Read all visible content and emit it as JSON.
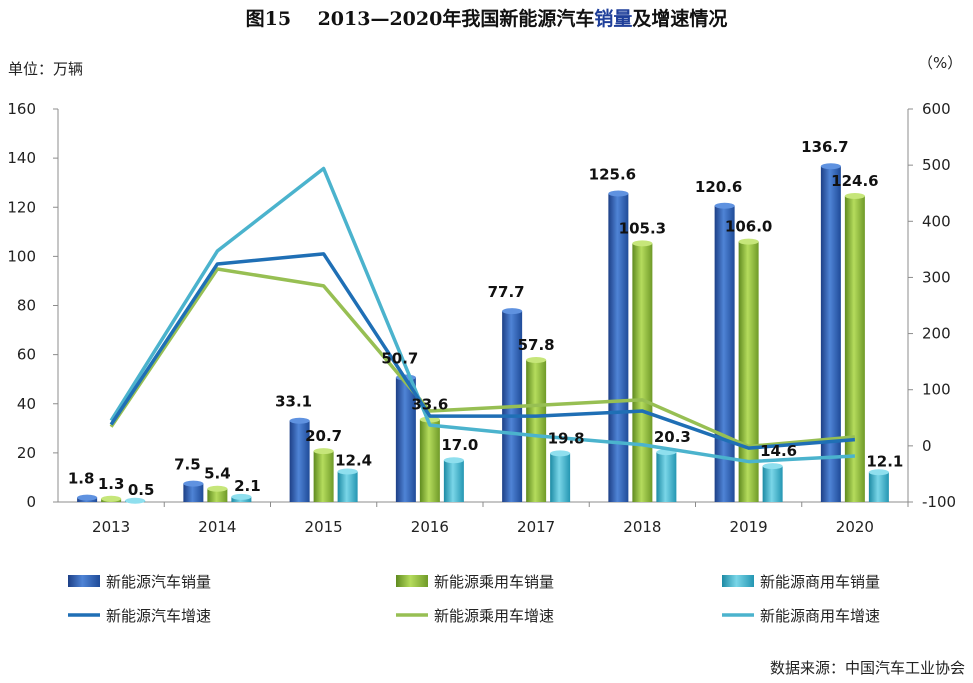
{
  "title": {
    "prefix": "图15",
    "main": "2013—2020年我国新能源汽车",
    "highlight": "销量",
    "suffix": "及增速情况"
  },
  "unit_left": "单位：万辆",
  "unit_right": "（%）",
  "source": "数据来源：中国汽车工业协会",
  "colors": {
    "total_bar": "#2e5fb0",
    "passenger_bar": "#8fb83c",
    "commercial_bar": "#3fb2c9",
    "total_line": "#1f6fb5",
    "passenger_line": "#97bf53",
    "commercial_line": "#4bb3cd",
    "axis": "#8c8c8c"
  },
  "chart_data": {
    "type": "bar",
    "categories": [
      "2013",
      "2014",
      "2015",
      "2016",
      "2017",
      "2018",
      "2019",
      "2020"
    ],
    "ylim": [
      0,
      160
    ],
    "yticks": [
      0,
      20,
      40,
      60,
      80,
      100,
      120,
      140,
      160
    ],
    "y2lim": [
      -100,
      600
    ],
    "y2ticks": [
      -100,
      0,
      100,
      200,
      300,
      400,
      500,
      600
    ],
    "series": [
      {
        "name": "新能源汽车销量",
        "kind": "bar",
        "values": [
          1.8,
          7.5,
          33.1,
          50.7,
          77.7,
          125.6,
          120.6,
          136.7
        ]
      },
      {
        "name": "新能源乘用车销量",
        "kind": "bar",
        "values": [
          1.3,
          5.4,
          20.7,
          33.6,
          57.8,
          105.3,
          106.0,
          124.6
        ]
      },
      {
        "name": "新能源商用车销量",
        "kind": "bar",
        "values": [
          0.5,
          2.1,
          12.4,
          17.0,
          19.8,
          20.3,
          14.6,
          12.1
        ]
      },
      {
        "name": "新能源汽车增速",
        "kind": "line",
        "axis": "right",
        "values": [
          38,
          324,
          342,
          53,
          53,
          62,
          -4,
          11
        ]
      },
      {
        "name": "新能源乘用车增速",
        "kind": "line",
        "axis": "right",
        "values": [
          34,
          315,
          285,
          62,
          72,
          82,
          -1,
          16
        ]
      },
      {
        "name": "新能源商用车增速",
        "kind": "line",
        "axis": "right",
        "values": [
          45,
          347,
          494,
          37,
          18,
          2,
          -28,
          -18
        ]
      }
    ],
    "bar_labels": [
      [
        "1.8",
        "7.5",
        "33.1",
        "50.7",
        "77.7",
        "125.6",
        "120.6",
        "136.7"
      ],
      [
        "1.3",
        "5.4",
        "20.7",
        "33.6",
        "57.8",
        "105.3",
        "106.0",
        "124.6"
      ],
      [
        "0.5",
        "2.1",
        "12.4",
        "17.0",
        "19.8",
        "20.3",
        "14.6",
        "12.1"
      ]
    ],
    "legend_position": "bottom",
    "grid": false
  }
}
